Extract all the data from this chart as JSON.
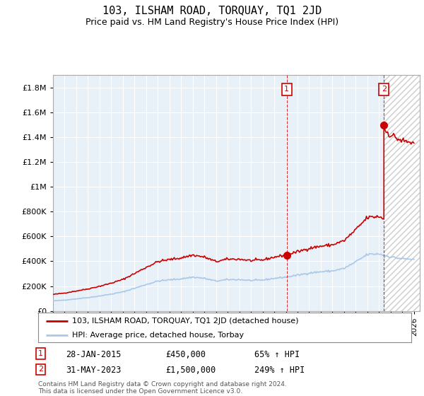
{
  "title": "103, ILSHAM ROAD, TORQUAY, TQ1 2JD",
  "subtitle": "Price paid vs. HM Land Registry's House Price Index (HPI)",
  "hpi_label": "HPI: Average price, detached house, Torbay",
  "property_label": "103, ILSHAM ROAD, TORQUAY, TQ1 2JD (detached house)",
  "footnote": "Contains HM Land Registry data © Crown copyright and database right 2024.\nThis data is licensed under the Open Government Licence v3.0.",
  "sale1_label": "28-JAN-2015",
  "sale1_price": "£450,000",
  "sale1_hpi": "65% ↑ HPI",
  "sale2_label": "31-MAY-2023",
  "sale2_price": "£1,500,000",
  "sale2_hpi": "249% ↑ HPI",
  "hpi_color": "#aac8e8",
  "property_color": "#cc0000",
  "ylim": [
    0,
    1900000
  ],
  "xlim_start": 1995.0,
  "xlim_end": 2026.5,
  "background_color": "#ffffff",
  "grid_color": "#cccccc",
  "sale1_x": 2015.07,
  "sale1_y": 450000,
  "sale2_x": 2023.42,
  "sale2_y": 1500000
}
